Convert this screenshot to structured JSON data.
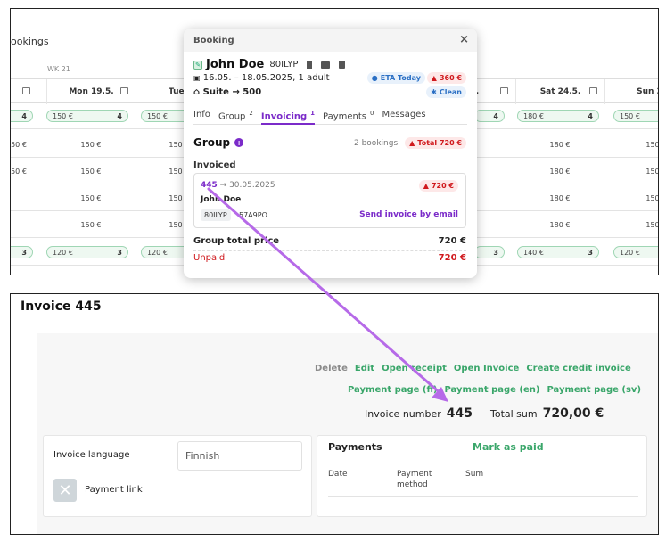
{
  "calendar": {
    "title_fragment": "ookings",
    "week": "WK 21",
    "days": [
      {
        "label": ""
      },
      {
        "label": "Mon 19.5."
      },
      {
        "label": "Tue 2"
      },
      {
        "label": "."
      },
      {
        "label": "Sat 24.5."
      },
      {
        "label": "Sun 2"
      }
    ],
    "pill_row_1": [
      {
        "price": "",
        "count": "4"
      },
      {
        "price": "150 €",
        "count": "4"
      },
      {
        "price": "150 €",
        "count": ""
      },
      {
        "price": "",
        "count": "4"
      },
      {
        "price": "180 €",
        "count": "4"
      },
      {
        "price": "150 €",
        "count": ""
      }
    ],
    "price_rows": [
      [
        "50 €",
        "150 €",
        "150",
        "180 €",
        "150"
      ],
      [
        "50 €",
        "150 €",
        "150",
        "180 €",
        "150"
      ],
      [
        "",
        "150 €",
        "150",
        "180 €",
        "150"
      ],
      [
        "",
        "150 €",
        "150",
        "180 €",
        "150"
      ]
    ],
    "pill_row_2": [
      {
        "price": "",
        "count": "3"
      },
      {
        "price": "120 €",
        "count": "3"
      },
      {
        "price": "120 €",
        "count": ""
      },
      {
        "price": "",
        "count": "3"
      },
      {
        "price": "140 €",
        "count": "3"
      },
      {
        "price": "120 €",
        "count": ""
      }
    ]
  },
  "booking": {
    "header": "Booking",
    "close": "×",
    "guest_name": "John Doe",
    "booking_code": "80ILYP",
    "dates": "16.05. – 18.05.2025, 1 adult",
    "room": "Suite → 500",
    "eta_badge": "ETA Today",
    "balance_badge": "360 €",
    "clean_badge": "Clean",
    "tabs": [
      {
        "label": "Info",
        "count": ""
      },
      {
        "label": "Group",
        "count": "2"
      },
      {
        "label": "Invoicing",
        "count": "1"
      },
      {
        "label": "Payments",
        "count": "0"
      },
      {
        "label": "Messages",
        "count": ""
      }
    ],
    "group_title": "Group",
    "group_bookings": "2 bookings",
    "group_total": "Total 720 €",
    "invoiced_label": "Invoiced",
    "invoice": {
      "number": "445",
      "date": "→ 30.05.2025",
      "amount": "720 €",
      "name": "John Doe",
      "code1": "80ILYP",
      "code2": "57A9PO",
      "send_label": "Send invoice by email"
    },
    "group_total_label": "Group total price",
    "group_total_value": "720 €",
    "unpaid_label": "Unpaid",
    "unpaid_value": "720 €"
  },
  "invoice_page": {
    "title": "Invoice 445",
    "actions_row1": [
      "Delete",
      "Edit",
      "Open receipt",
      "Open Invoice",
      "Create credit invoice"
    ],
    "actions_row2": [
      "Payment page (fi)",
      "Payment page (en)",
      "Payment page (sv)"
    ],
    "invoice_number_label": "Invoice number",
    "invoice_number": "445",
    "total_label": "Total sum",
    "total_value": "720,00 €",
    "language_label": "Invoice language",
    "language_value": "Finnish",
    "payment_link_label": "Payment link",
    "payments_title": "Payments",
    "mark_paid": "Mark as paid",
    "payments_headers": [
      "Date",
      "Payment method",
      "Sum"
    ]
  },
  "colors": {
    "accent": "#7b2bc9",
    "green": "#3aa66a",
    "danger": "#d0191d",
    "info": "#2a6fc4"
  }
}
